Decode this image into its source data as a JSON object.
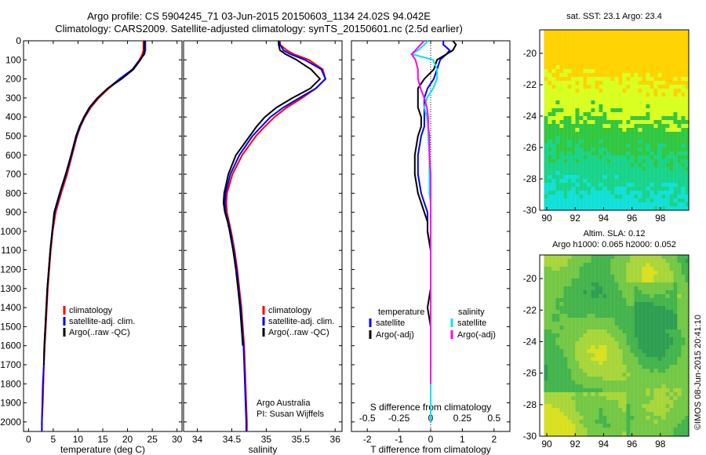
{
  "header": {
    "title_line1": "Argo profile: CS 5904245_71 03-Jun-2015 20150603_1134 24.02S 94.042E",
    "title_line2": "Climatology: CARS2009. Satellite-adjusted climatology: synTS_20150601.nc (2.5d earlier)"
  },
  "map_headers": {
    "sst": "sat. SST: 23.1  Argo: 23.4",
    "sla_line1": "Altim. SLA: 0.12",
    "sla_line2": "Argo h1000: 0.065 h2000: 0.052"
  },
  "footer": {
    "credits_line1": "Argo Australia",
    "credits_line2": "PI: Susan Wijffels",
    "timestamp": "©IMOS 08-Jun-2015 20:41:10"
  },
  "colors": {
    "climatology": "#ff0000",
    "satellite": "#0000ff",
    "argo": "#000000",
    "sat_diff_sal": "#00e5ee",
    "argo_diff_sal": "#ff00ff"
  },
  "chart_data": [
    {
      "type": "line",
      "id": "temperature",
      "xlabel": "temperature (deg C)",
      "ylabel": "",
      "xlim": [
        -1,
        31
      ],
      "ylim": [
        2050,
        0
      ],
      "xticks": [
        0,
        5,
        10,
        15,
        20,
        25,
        30
      ],
      "yticks": [
        0,
        100,
        200,
        300,
        400,
        500,
        600,
        700,
        800,
        900,
        1000,
        1100,
        1200,
        1300,
        1400,
        1500,
        1600,
        1700,
        1800,
        1900,
        2000
      ],
      "legend": [
        "climatology",
        "satellite-adj. clim.",
        "Argo(..raw -QC)"
      ],
      "legend_placement": "lower-right",
      "y": [
        0,
        20,
        50,
        70,
        100,
        150,
        200,
        250,
        300,
        350,
        400,
        450,
        500,
        600,
        700,
        800,
        900,
        1000,
        1100,
        1200,
        1300,
        1400,
        1500,
        1600,
        1700,
        1800,
        1900,
        2000,
        2050
      ],
      "series": [
        {
          "name": "climatology",
          "color": "#ff0000",
          "values": [
            23.2,
            23.2,
            23.2,
            23.0,
            22.4,
            21.0,
            18.6,
            16.2,
            14.2,
            12.6,
            11.4,
            10.5,
            9.8,
            8.8,
            7.8,
            6.6,
            5.5,
            4.9,
            4.5,
            4.2,
            3.9,
            3.7,
            3.5,
            3.3,
            3.1,
            3.0,
            2.9,
            2.7,
            2.7
          ]
        },
        {
          "name": "satellite-adj. clim.",
          "color": "#0000ff",
          "values": [
            23.6,
            23.6,
            23.6,
            23.4,
            22.5,
            21.0,
            18.4,
            16.0,
            14.0,
            12.4,
            11.3,
            10.4,
            9.7,
            8.7,
            7.6,
            6.4,
            5.3,
            4.8,
            4.4,
            4.1,
            3.8,
            3.6,
            3.4,
            3.2,
            3.1,
            2.9,
            2.8,
            2.7,
            2.7
          ]
        },
        {
          "name": "Argo(..raw -QC)",
          "color": "#000000",
          "values": [
            23.4,
            23.4,
            23.4,
            23.3,
            22.6,
            21.2,
            18.8,
            16.0,
            13.9,
            12.3,
            11.2,
            10.3,
            9.6,
            8.6,
            7.5,
            6.3,
            5.2,
            4.8,
            4.4,
            4.1,
            3.8,
            3.6,
            3.4,
            3.2,
            3.1,
            null,
            null,
            null,
            null
          ]
        }
      ]
    },
    {
      "type": "line",
      "id": "salinity",
      "xlabel": "salinity",
      "ylabel": "",
      "xlim": [
        33.8,
        36.1
      ],
      "ylim": [
        2050,
        0
      ],
      "xticks": [
        34,
        34.5,
        35,
        35.5,
        36
      ],
      "legend": [
        "climatology",
        "satellite-adj. clim.",
        "Argo(..raw -QC)"
      ],
      "legend_placement": "lower-right",
      "y": [
        0,
        20,
        50,
        70,
        100,
        150,
        200,
        250,
        300,
        350,
        400,
        450,
        500,
        600,
        700,
        800,
        850,
        900,
        950,
        1000,
        1100,
        1200,
        1300,
        1400,
        1500,
        1600,
        1700,
        1800,
        1900,
        2000,
        2050
      ],
      "series": [
        {
          "name": "climatology",
          "color": "#ff0000",
          "values": [
            35.2,
            35.2,
            35.3,
            35.4,
            35.62,
            35.82,
            35.86,
            35.72,
            35.52,
            35.3,
            35.12,
            34.98,
            34.85,
            34.65,
            34.51,
            34.43,
            34.42,
            34.43,
            34.46,
            34.49,
            34.54,
            34.58,
            34.61,
            34.64,
            34.66,
            34.68,
            34.69,
            34.7,
            34.71,
            34.72,
            34.72
          ]
        },
        {
          "name": "satellite-adj. clim.",
          "color": "#0000ff",
          "values": [
            35.18,
            35.2,
            35.25,
            35.35,
            35.56,
            35.8,
            35.86,
            35.72,
            35.48,
            35.25,
            35.06,
            34.93,
            34.8,
            34.61,
            34.48,
            34.41,
            34.4,
            34.41,
            34.45,
            34.48,
            34.53,
            34.57,
            34.6,
            34.63,
            34.65,
            34.67,
            34.68,
            34.69,
            34.7,
            34.71,
            34.71
          ]
        },
        {
          "name": "Argo(..raw -QC)",
          "color": "#000000",
          "values": [
            35.18,
            35.18,
            35.2,
            35.28,
            35.44,
            35.65,
            35.78,
            35.64,
            35.38,
            35.15,
            34.98,
            34.86,
            34.76,
            34.56,
            34.45,
            34.39,
            34.38,
            34.4,
            34.44,
            34.47,
            34.52,
            34.56,
            34.59,
            34.62,
            34.64,
            34.66,
            null,
            null,
            null,
            null,
            null
          ]
        }
      ]
    },
    {
      "type": "line",
      "id": "differences",
      "xlabel": "T difference from climatology",
      "xlabel_top": "S difference from climatology",
      "xlim": [
        -2.5,
        2.5
      ],
      "ylim": [
        2050,
        0
      ],
      "xticks": [
        -2,
        -1,
        0,
        1,
        2
      ],
      "xticks_salinity": [
        -0.5,
        -0.25,
        0,
        0.25,
        0.5
      ],
      "xticklabels_salinity": [
        "-0.5",
        "-0.25",
        "0",
        "0.25",
        "0.5"
      ],
      "legend_temperature_title": "temperature",
      "legend_salinity_title": "salinity",
      "legend": [
        "satellite",
        "Argo(-adj)",
        "satellite",
        "Argo(-adj)"
      ],
      "y": [
        0,
        20,
        50,
        70,
        100,
        150,
        200,
        250,
        300,
        350,
        400,
        450,
        500,
        600,
        700,
        800,
        850,
        900,
        950,
        1000,
        1100,
        1200,
        1300,
        1400,
        1500,
        1600,
        1700,
        1800,
        1900,
        2000
      ],
      "series": [
        {
          "name": "satellite",
          "quantity": "temperature",
          "color": "#0000ff",
          "values": [
            0.4,
            0.4,
            0.6,
            0.5,
            0.3,
            0.2,
            0.1,
            -0.1,
            -0.2,
            -0.2,
            -0.2,
            -0.2,
            -0.3,
            -0.4,
            -0.4,
            -0.3,
            -0.2,
            -0.1,
            -0.1,
            -0.1,
            0,
            0,
            0,
            0,
            0,
            0,
            0,
            0,
            0,
            0
          ]
        },
        {
          "name": "Argo(-adj)",
          "quantity": "temperature",
          "color": "#000000",
          "values": [
            0.7,
            0.8,
            0.7,
            0.5,
            0.2,
            0.1,
            -0.2,
            -0.4,
            -0.4,
            -0.4,
            -0.3,
            -0.3,
            -0.4,
            -0.5,
            -0.5,
            -0.4,
            -0.3,
            -0.2,
            -0.1,
            -0.1,
            0,
            0,
            0,
            -0.1,
            0,
            0,
            0,
            0,
            null,
            null
          ]
        },
        {
          "name": "satellite",
          "quantity": "salinity",
          "color": "#00e5ee",
          "values": [
            -0.02,
            -0.05,
            -0.1,
            -0.15,
            0.02,
            0.05,
            0.05,
            0.02,
            -0.03,
            -0.05,
            -0.03,
            -0.02,
            -0.02,
            -0.01,
            -0.01,
            -0.01,
            0,
            0,
            0,
            0,
            0,
            0,
            0,
            0,
            0,
            0,
            0,
            0,
            0,
            0
          ]
        },
        {
          "name": "Argo(-adj)",
          "quantity": "salinity",
          "color": "#ff00ff",
          "values": [
            -0.05,
            -0.08,
            -0.12,
            -0.15,
            -0.12,
            -0.1,
            -0.1,
            -0.08,
            -0.05,
            -0.03,
            -0.02,
            -0.02,
            -0.01,
            -0.01,
            0,
            0,
            0,
            0,
            0,
            0,
            0,
            0,
            0,
            0,
            0,
            0,
            0,
            0,
            null,
            null
          ]
        }
      ]
    },
    {
      "type": "heatmap",
      "id": "sst-map",
      "xlim": [
        89.5,
        100
      ],
      "ylim": [
        -30,
        -18.5
      ],
      "xticks": [
        90,
        92,
        94,
        96,
        98
      ],
      "yticks": [
        -20,
        -22,
        -24,
        -26,
        -28,
        -30
      ]
    },
    {
      "type": "heatmap",
      "id": "sla-map",
      "xlim": [
        89.5,
        100
      ],
      "ylim": [
        -30,
        -18.5
      ],
      "xticks": [
        90,
        92,
        94,
        96,
        98
      ],
      "yticks": [
        -20,
        -22,
        -24,
        -26,
        -28,
        -30
      ]
    }
  ]
}
